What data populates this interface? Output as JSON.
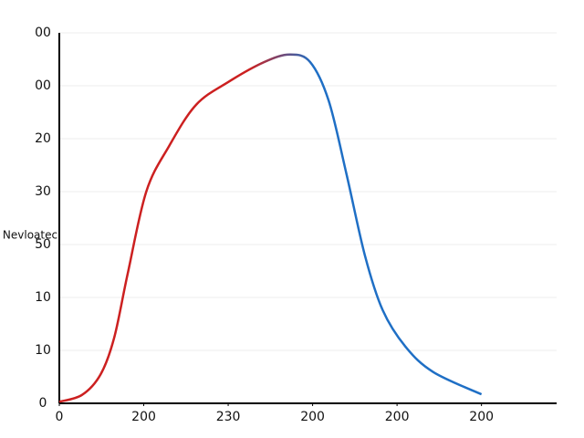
{
  "chart_data": {
    "type": "line",
    "y_label": "Nevloatec",
    "x": [
      0,
      0.27,
      0.49,
      0.65,
      0.81,
      1.03,
      1.3,
      1.62,
      2.0,
      2.43,
      2.73,
      2.97,
      3.19,
      3.4,
      3.62,
      3.83,
      4.1,
      4.43,
      5.0
    ],
    "series": [
      {
        "gradient": [
          "#cc2020",
          "#1f6fc5"
        ],
        "values": [
          0.03,
          0.16,
          0.55,
          1.24,
          2.45,
          4.0,
          4.86,
          5.64,
          6.07,
          6.45,
          6.59,
          6.45,
          5.72,
          4.34,
          2.79,
          1.76,
          1.07,
          0.59,
          0.17
        ]
      }
    ],
    "xlim": [
      0,
      5.89
    ],
    "ylim": [
      0,
      7
    ],
    "xticks": [
      {
        "value": 0,
        "label": "0"
      },
      {
        "value": 1,
        "label": "200"
      },
      {
        "value": 2,
        "label": "230"
      },
      {
        "value": 3,
        "label": "200"
      },
      {
        "value": 4,
        "label": "200"
      },
      {
        "value": 5,
        "label": "200"
      }
    ],
    "yticks": [
      {
        "value": 0,
        "label": "0"
      },
      {
        "value": 1,
        "label": "10"
      },
      {
        "value": 2,
        "label": "10"
      },
      {
        "value": 3,
        "label": "50"
      },
      {
        "value": 4,
        "label": "30"
      },
      {
        "value": 5,
        "label": "20"
      },
      {
        "value": 6,
        "label": "00"
      },
      {
        "value": 7,
        "label": "00"
      }
    ],
    "grid": true
  }
}
